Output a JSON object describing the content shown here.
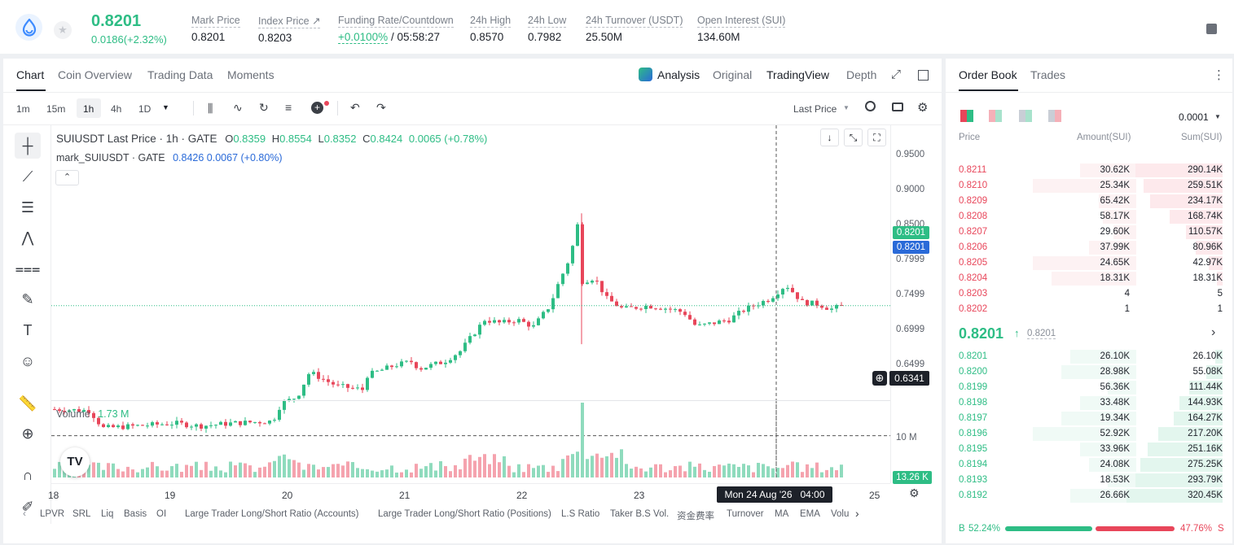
{
  "header": {
    "last_price": "0.8201",
    "change": "0.0186(+2.32%)",
    "stats": [
      {
        "label": "Mark Price",
        "value": "0.8201"
      },
      {
        "label": "Index Price ↗",
        "value": "0.8203"
      },
      {
        "label": "Funding Rate/Countdown",
        "value": "+0.0100%",
        "value2": "/ 05:58:27"
      },
      {
        "label": "24h High",
        "value": "0.8570"
      },
      {
        "label": "24h Low",
        "value": "0.7982"
      },
      {
        "label": "24h Turnover (USDT)",
        "value": "25.50M"
      },
      {
        "label": "Open Interest (SUI)",
        "value": "134.60M"
      }
    ]
  },
  "chart_tabs": [
    "Chart",
    "Coin Overview",
    "Trading Data",
    "Moments"
  ],
  "view_tabs": {
    "analysis": "Analysis",
    "original": "Original",
    "tradingview": "TradingView",
    "depth": "Depth"
  },
  "intervals": [
    "1m",
    "15m",
    "1h",
    "4h",
    "1D"
  ],
  "price_type": "Last Price",
  "legend": {
    "symbol": "SUIUSDT Last Price · 1h · GATE",
    "o_label": "O",
    "o": "0.8359",
    "h_label": "H",
    "h": "0.8554",
    "l_label": "L",
    "l": "0.8352",
    "c_label": "C",
    "c": "0.8424",
    "chg": "0.0065 (+0.78%)",
    "mark_name": "mark_SUIUSDT · GATE",
    "mark_val": "0.8426 0.0067 (+0.80%)"
  },
  "volume": {
    "label": "Volume",
    "value": "1.73 M",
    "axis_label": "10 M",
    "current": "13.26 K"
  },
  "price_axis": [
    "0.9500",
    "0.9000",
    "0.8500",
    "0.7999",
    "0.7499",
    "0.6999",
    "0.6499"
  ],
  "price_tags": {
    "last": "0.8201",
    "mark": "0.8201",
    "crosshair": "0.6341"
  },
  "time_axis": [
    "18",
    "19",
    "20",
    "21",
    "22",
    "23",
    "25"
  ],
  "crosshair_time": "Mon 24 Aug '26   04:00",
  "indicators": [
    "LPVR",
    "SRL",
    "Liq",
    "Basis",
    "OI",
    "Large Trader Long/Short Ratio (Accounts)",
    "Large Trader Long/Short Ratio (Positions)",
    "L.S Ratio",
    "Taker B.S Vol.",
    "资金费率",
    "Turnover",
    "MA",
    "EMA",
    "Volu"
  ],
  "orderbook": {
    "tabs": [
      "Order Book",
      "Trades"
    ],
    "precision": "0.0001",
    "headers": {
      "price": "Price",
      "amount": "Amount(SUI)",
      "sum": "Sum(SUI)"
    },
    "asks": [
      {
        "price": "0.8211",
        "amount": "30.62K",
        "sum": "290.14K",
        "depth": 0.91,
        "amt": 0.3
      },
      {
        "price": "0.8210",
        "amount": "25.34K",
        "sum": "259.51K",
        "depth": 0.82,
        "amt": 0.55
      },
      {
        "price": "0.8209",
        "amount": "65.42K",
        "sum": "234.17K",
        "depth": 0.75,
        "amt": 0.2
      },
      {
        "price": "0.8208",
        "amount": "58.17K",
        "sum": "168.74K",
        "depth": 0.55,
        "amt": 0.18
      },
      {
        "price": "0.8207",
        "amount": "29.60K",
        "sum": "110.57K",
        "depth": 0.38,
        "amt": 0.12
      },
      {
        "price": "0.8206",
        "amount": "37.99K",
        "sum": "80.96K",
        "depth": 0.28,
        "amt": 0.25
      },
      {
        "price": "0.8205",
        "amount": "24.65K",
        "sum": "42.97K",
        "depth": 0.14,
        "amt": 0.55
      },
      {
        "price": "0.8204",
        "amount": "18.31K",
        "sum": "18.31K",
        "depth": 0.06,
        "amt": 0.45
      },
      {
        "price": "0.8203",
        "amount": "4",
        "sum": "5",
        "depth": 0.0,
        "amt": 0
      },
      {
        "price": "0.8202",
        "amount": "1",
        "sum": "1",
        "depth": 0.0,
        "amt": 0
      }
    ],
    "mid_price": "0.8201",
    "mid_mark": "0.8201",
    "bids": [
      {
        "price": "0.8201",
        "amount": "26.10K",
        "sum": "26.10K",
        "depth": 0.08,
        "amt": 0.35
      },
      {
        "price": "0.8200",
        "amount": "28.98K",
        "sum": "55.08K",
        "depth": 0.17,
        "amt": 0.4
      },
      {
        "price": "0.8199",
        "amount": "56.36K",
        "sum": "111.44K",
        "depth": 0.35,
        "amt": 0.15
      },
      {
        "price": "0.8198",
        "amount": "33.48K",
        "sum": "144.93K",
        "depth": 0.45,
        "amt": 0.3
      },
      {
        "price": "0.8197",
        "amount": "19.34K",
        "sum": "164.27K",
        "depth": 0.51,
        "amt": 0.4
      },
      {
        "price": "0.8196",
        "amount": "52.92K",
        "sum": "217.20K",
        "depth": 0.67,
        "amt": 0.55
      },
      {
        "price": "0.8195",
        "amount": "33.96K",
        "sum": "251.16K",
        "depth": 0.78,
        "amt": 0.3
      },
      {
        "price": "0.8194",
        "amount": "24.08K",
        "sum": "275.25K",
        "depth": 0.86,
        "amt": 0.25
      },
      {
        "price": "0.8193",
        "amount": "18.53K",
        "sum": "293.79K",
        "depth": 0.91,
        "amt": 0.15
      },
      {
        "price": "0.8192",
        "amount": "26.66K",
        "sum": "320.45K",
        "depth": 1.0,
        "amt": 0.35
      }
    ],
    "buy_ratio": "52.24%",
    "sell_ratio": "47.76%",
    "buy_frac": 0.5224,
    "b_label": "B",
    "s_label": "S"
  },
  "colors": {
    "up": "#2ebd85",
    "down": "#e8465a",
    "mark": "#2a6ad8"
  }
}
